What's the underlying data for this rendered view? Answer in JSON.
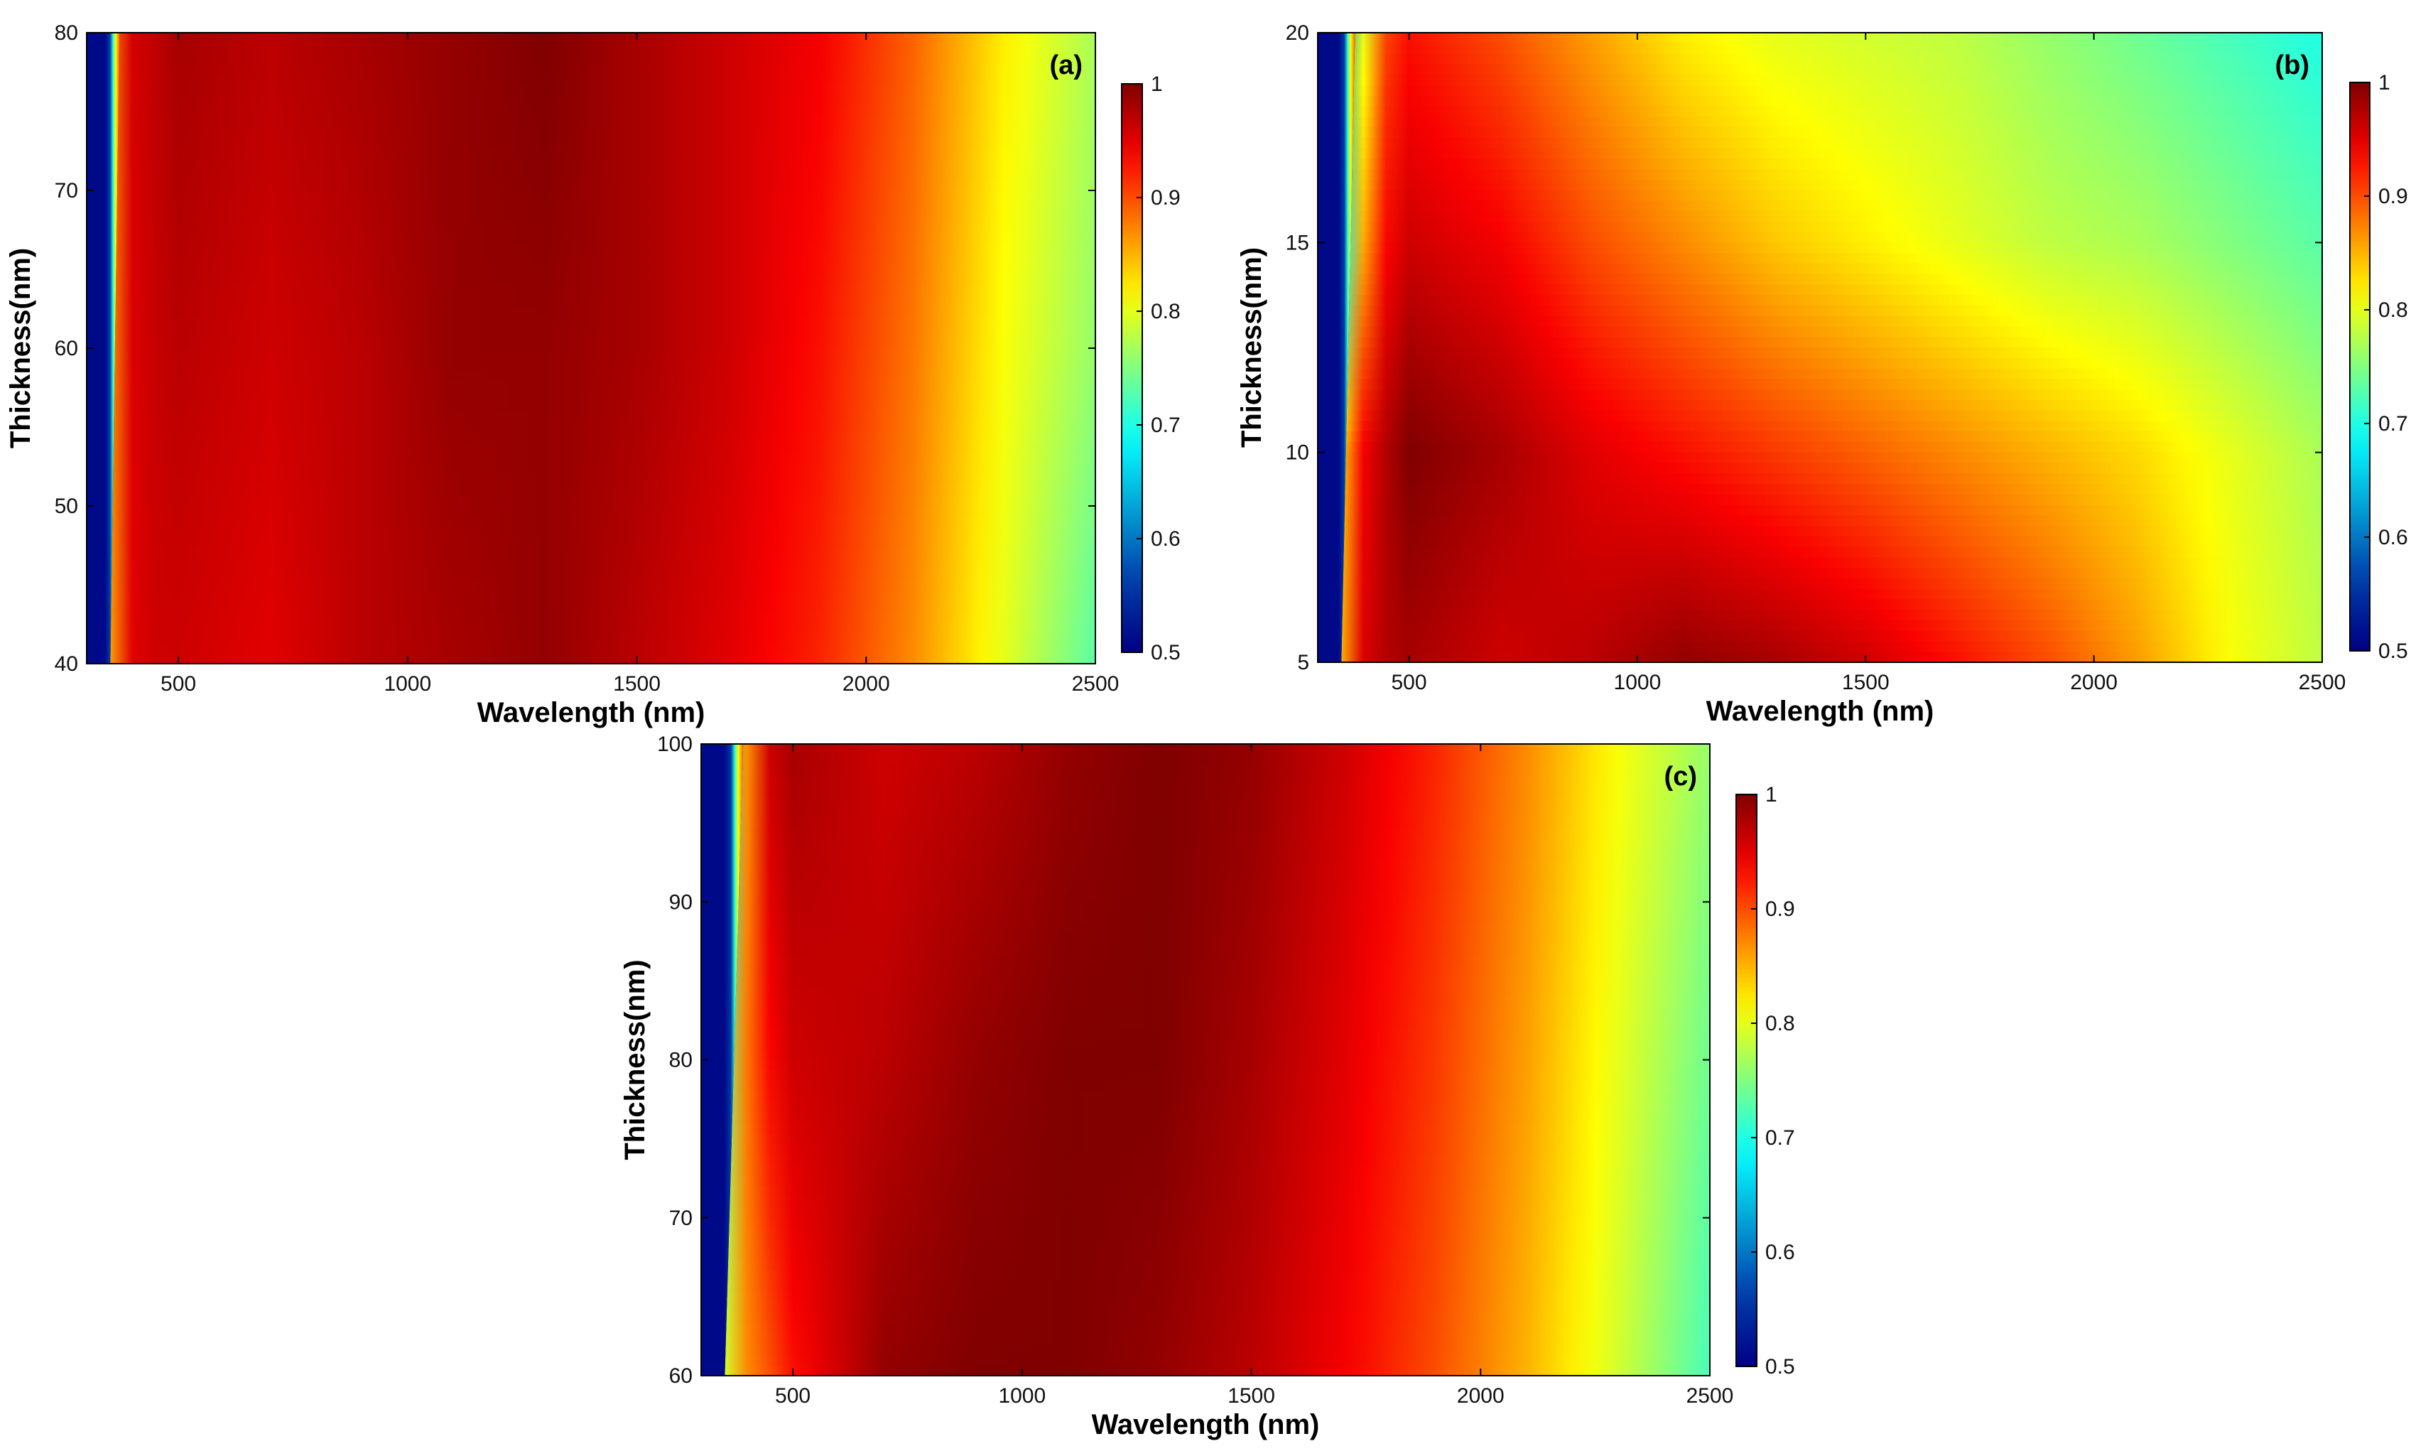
{
  "chart_data": [
    {
      "type": "heatmap",
      "panel_label": "(a)",
      "xlabel": "Wavelength (nm)",
      "ylabel": "Thickness(nm)",
      "xlim": [
        300,
        2500
      ],
      "ylim": [
        40,
        80
      ],
      "xticks": [
        500,
        1000,
        1500,
        2000,
        2500
      ],
      "yticks": [
        40,
        50,
        60,
        70,
        80
      ],
      "colorbar": {
        "range": [
          0.5,
          1
        ],
        "ticks": [
          0.5,
          0.6,
          0.7,
          0.8,
          0.9,
          1
        ],
        "tick_labels": [
          "0.5",
          "0.6",
          "0.7",
          "0.8",
          "0.9",
          "1"
        ],
        "colormap": "jet"
      },
      "edge_wavelength": {
        "at_ymin": 330,
        "at_ymax": 350
      },
      "profiles": [
        {
          "y": 40,
          "x": [
            300,
            360,
            420,
            500,
            700,
            900,
            1100,
            1300,
            1500,
            1700,
            1900,
            2100,
            2300,
            2500
          ],
          "values": [
            0.5,
            0.93,
            0.96,
            0.96,
            0.95,
            0.97,
            0.98,
            0.99,
            0.97,
            0.95,
            0.92,
            0.87,
            0.8,
            0.73
          ]
        },
        {
          "y": 60,
          "x": [
            300,
            360,
            420,
            500,
            700,
            900,
            1100,
            1300,
            1500,
            1700,
            1900,
            2100,
            2300,
            2500
          ],
          "values": [
            0.5,
            0.94,
            0.96,
            0.97,
            0.96,
            0.97,
            0.99,
            0.99,
            0.98,
            0.96,
            0.93,
            0.88,
            0.81,
            0.76
          ]
        },
        {
          "y": 80,
          "x": [
            300,
            360,
            420,
            500,
            700,
            900,
            1100,
            1300,
            1500,
            1700,
            1900,
            2100,
            2300,
            2500
          ],
          "values": [
            0.5,
            0.95,
            0.96,
            0.98,
            0.97,
            0.98,
            0.99,
            1.0,
            0.98,
            0.96,
            0.94,
            0.89,
            0.82,
            0.77
          ]
        }
      ]
    },
    {
      "type": "heatmap",
      "panel_label": "(b)",
      "xlabel": "Wavelength (nm)",
      "ylabel": "Thickness(nm)",
      "xlim": [
        300,
        2500
      ],
      "ylim": [
        5,
        20
      ],
      "xticks": [
        500,
        1000,
        1500,
        2000,
        2500
      ],
      "yticks": [
        5,
        10,
        15,
        20
      ],
      "colorbar": {
        "range": [
          0.5,
          1
        ],
        "ticks": [
          0.5,
          0.6,
          0.7,
          0.8,
          0.9,
          1
        ],
        "tick_labels": [
          "0.5",
          "0.6",
          "0.7",
          "0.8",
          "0.9",
          "1"
        ],
        "colormap": "jet"
      },
      "edge_wavelength": {
        "at_ymin": 330,
        "at_ymax": 360
      },
      "profiles": [
        {
          "y": 5,
          "x": [
            300,
            360,
            420,
            500,
            700,
            900,
            1100,
            1300,
            1500,
            1700,
            1900,
            2100,
            2300,
            2500
          ],
          "values": [
            0.5,
            0.92,
            0.97,
            0.98,
            0.96,
            0.97,
            0.99,
            0.98,
            0.96,
            0.93,
            0.9,
            0.86,
            0.81,
            0.78
          ]
        },
        {
          "y": 10,
          "x": [
            300,
            360,
            420,
            500,
            700,
            900,
            1100,
            1300,
            1500,
            1700,
            1900,
            2100,
            2300,
            2500
          ],
          "values": [
            0.5,
            0.9,
            0.96,
            1.0,
            0.98,
            0.95,
            0.93,
            0.91,
            0.89,
            0.87,
            0.85,
            0.83,
            0.8,
            0.77
          ]
        },
        {
          "y": 15,
          "x": [
            300,
            360,
            420,
            500,
            700,
            900,
            1100,
            1300,
            1500,
            1700,
            1900,
            2100,
            2300,
            2500
          ],
          "values": [
            0.5,
            0.72,
            0.92,
            0.96,
            0.94,
            0.9,
            0.87,
            0.84,
            0.82,
            0.8,
            0.78,
            0.77,
            0.75,
            0.73
          ]
        },
        {
          "y": 20,
          "x": [
            300,
            360,
            420,
            500,
            700,
            900,
            1100,
            1300,
            1500,
            1700,
            1900,
            2100,
            2300,
            2500
          ],
          "values": [
            0.5,
            0.62,
            0.89,
            0.93,
            0.9,
            0.86,
            0.82,
            0.8,
            0.79,
            0.78,
            0.76,
            0.74,
            0.72,
            0.7
          ]
        }
      ]
    },
    {
      "type": "heatmap",
      "panel_label": "(c)",
      "xlabel": "Wavelength (nm)",
      "ylabel": "Thickness(nm)",
      "xlim": [
        300,
        2500
      ],
      "ylim": [
        60,
        100
      ],
      "xticks": [
        500,
        1000,
        1500,
        2000,
        2500
      ],
      "yticks": [
        60,
        70,
        80,
        90,
        100
      ],
      "colorbar": {
        "range": [
          0.5,
          1
        ],
        "ticks": [
          0.5,
          0.6,
          0.7,
          0.8,
          0.9,
          1
        ],
        "tick_labels": [
          "0.5",
          "0.6",
          "0.7",
          "0.8",
          "0.9",
          "1"
        ],
        "colormap": "jet"
      },
      "edge_wavelength": {
        "at_ymin": 330,
        "at_ymax": 370
      },
      "profiles": [
        {
          "y": 60,
          "x": [
            300,
            360,
            420,
            500,
            700,
            900,
            1100,
            1300,
            1500,
            1700,
            1900,
            2100,
            2300,
            2500
          ],
          "values": [
            0.5,
            0.85,
            0.88,
            0.93,
            0.99,
            1.0,
            1.0,
            0.99,
            0.97,
            0.94,
            0.9,
            0.85,
            0.79,
            0.72
          ]
        },
        {
          "y": 80,
          "x": [
            300,
            360,
            420,
            500,
            700,
            900,
            1100,
            1300,
            1500,
            1700,
            1900,
            2100,
            2300,
            2500
          ],
          "values": [
            0.5,
            0.8,
            0.92,
            0.96,
            0.97,
            0.99,
            1.0,
            1.0,
            0.98,
            0.95,
            0.91,
            0.86,
            0.8,
            0.74
          ]
        },
        {
          "y": 100,
          "x": [
            300,
            360,
            420,
            500,
            700,
            900,
            1100,
            1300,
            1500,
            1700,
            1900,
            2100,
            2300,
            2500
          ],
          "values": [
            0.5,
            0.7,
            0.95,
            0.98,
            0.96,
            0.97,
            0.99,
            1.0,
            0.99,
            0.96,
            0.92,
            0.87,
            0.81,
            0.76
          ]
        }
      ]
    }
  ]
}
